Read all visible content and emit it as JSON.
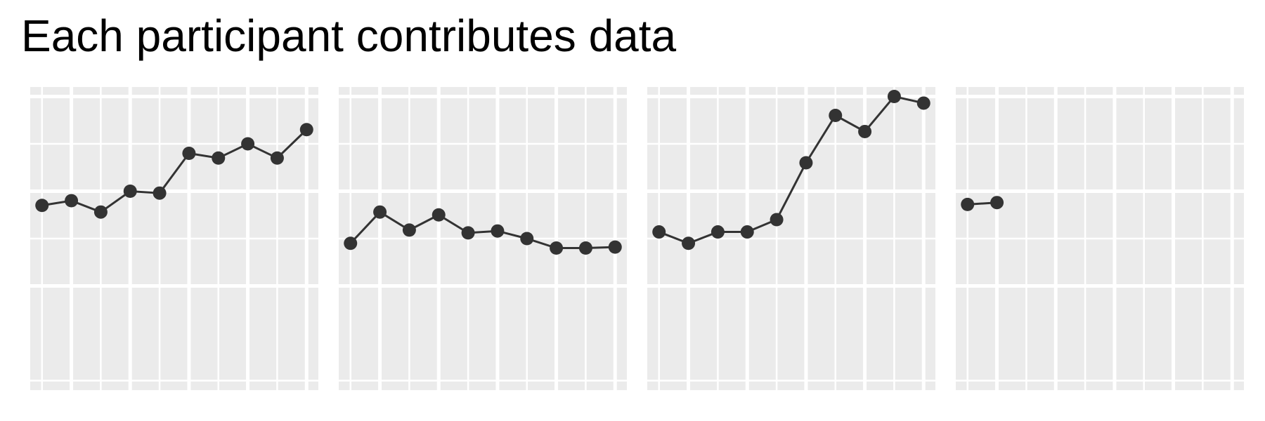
{
  "title": "Each participant contributes data",
  "colors": {
    "panel_background": "#ebebeb",
    "gridline": "#ffffff",
    "series": "#333333"
  },
  "chart_data": {
    "type": "line",
    "title": "Each participant contributes data",
    "xlabel": "",
    "ylabel": "",
    "xlim": [
      0.6,
      10.4
    ],
    "ylim": [
      0.9,
      4.1
    ],
    "grid": true,
    "legend": "none",
    "facets": [
      {
        "x": [
          1,
          2,
          3,
          4,
          5,
          6,
          7,
          8,
          9,
          10
        ],
        "y": [
          2.85,
          2.9,
          2.78,
          3.0,
          2.98,
          3.4,
          3.35,
          3.5,
          3.35,
          3.65
        ]
      },
      {
        "x": [
          1,
          2,
          3,
          4,
          5,
          6,
          7,
          8,
          9,
          10
        ],
        "y": [
          2.45,
          2.78,
          2.59,
          2.75,
          2.56,
          2.58,
          2.5,
          2.4,
          2.4,
          2.41
        ]
      },
      {
        "x": [
          1,
          2,
          3,
          4,
          5,
          6,
          7,
          8,
          9,
          10
        ],
        "y": [
          2.57,
          2.45,
          2.57,
          2.57,
          2.7,
          3.3,
          3.8,
          3.63,
          4.0,
          3.93
        ]
      },
      {
        "x": [
          1,
          2
        ],
        "y": [
          2.86,
          2.88
        ]
      }
    ]
  }
}
